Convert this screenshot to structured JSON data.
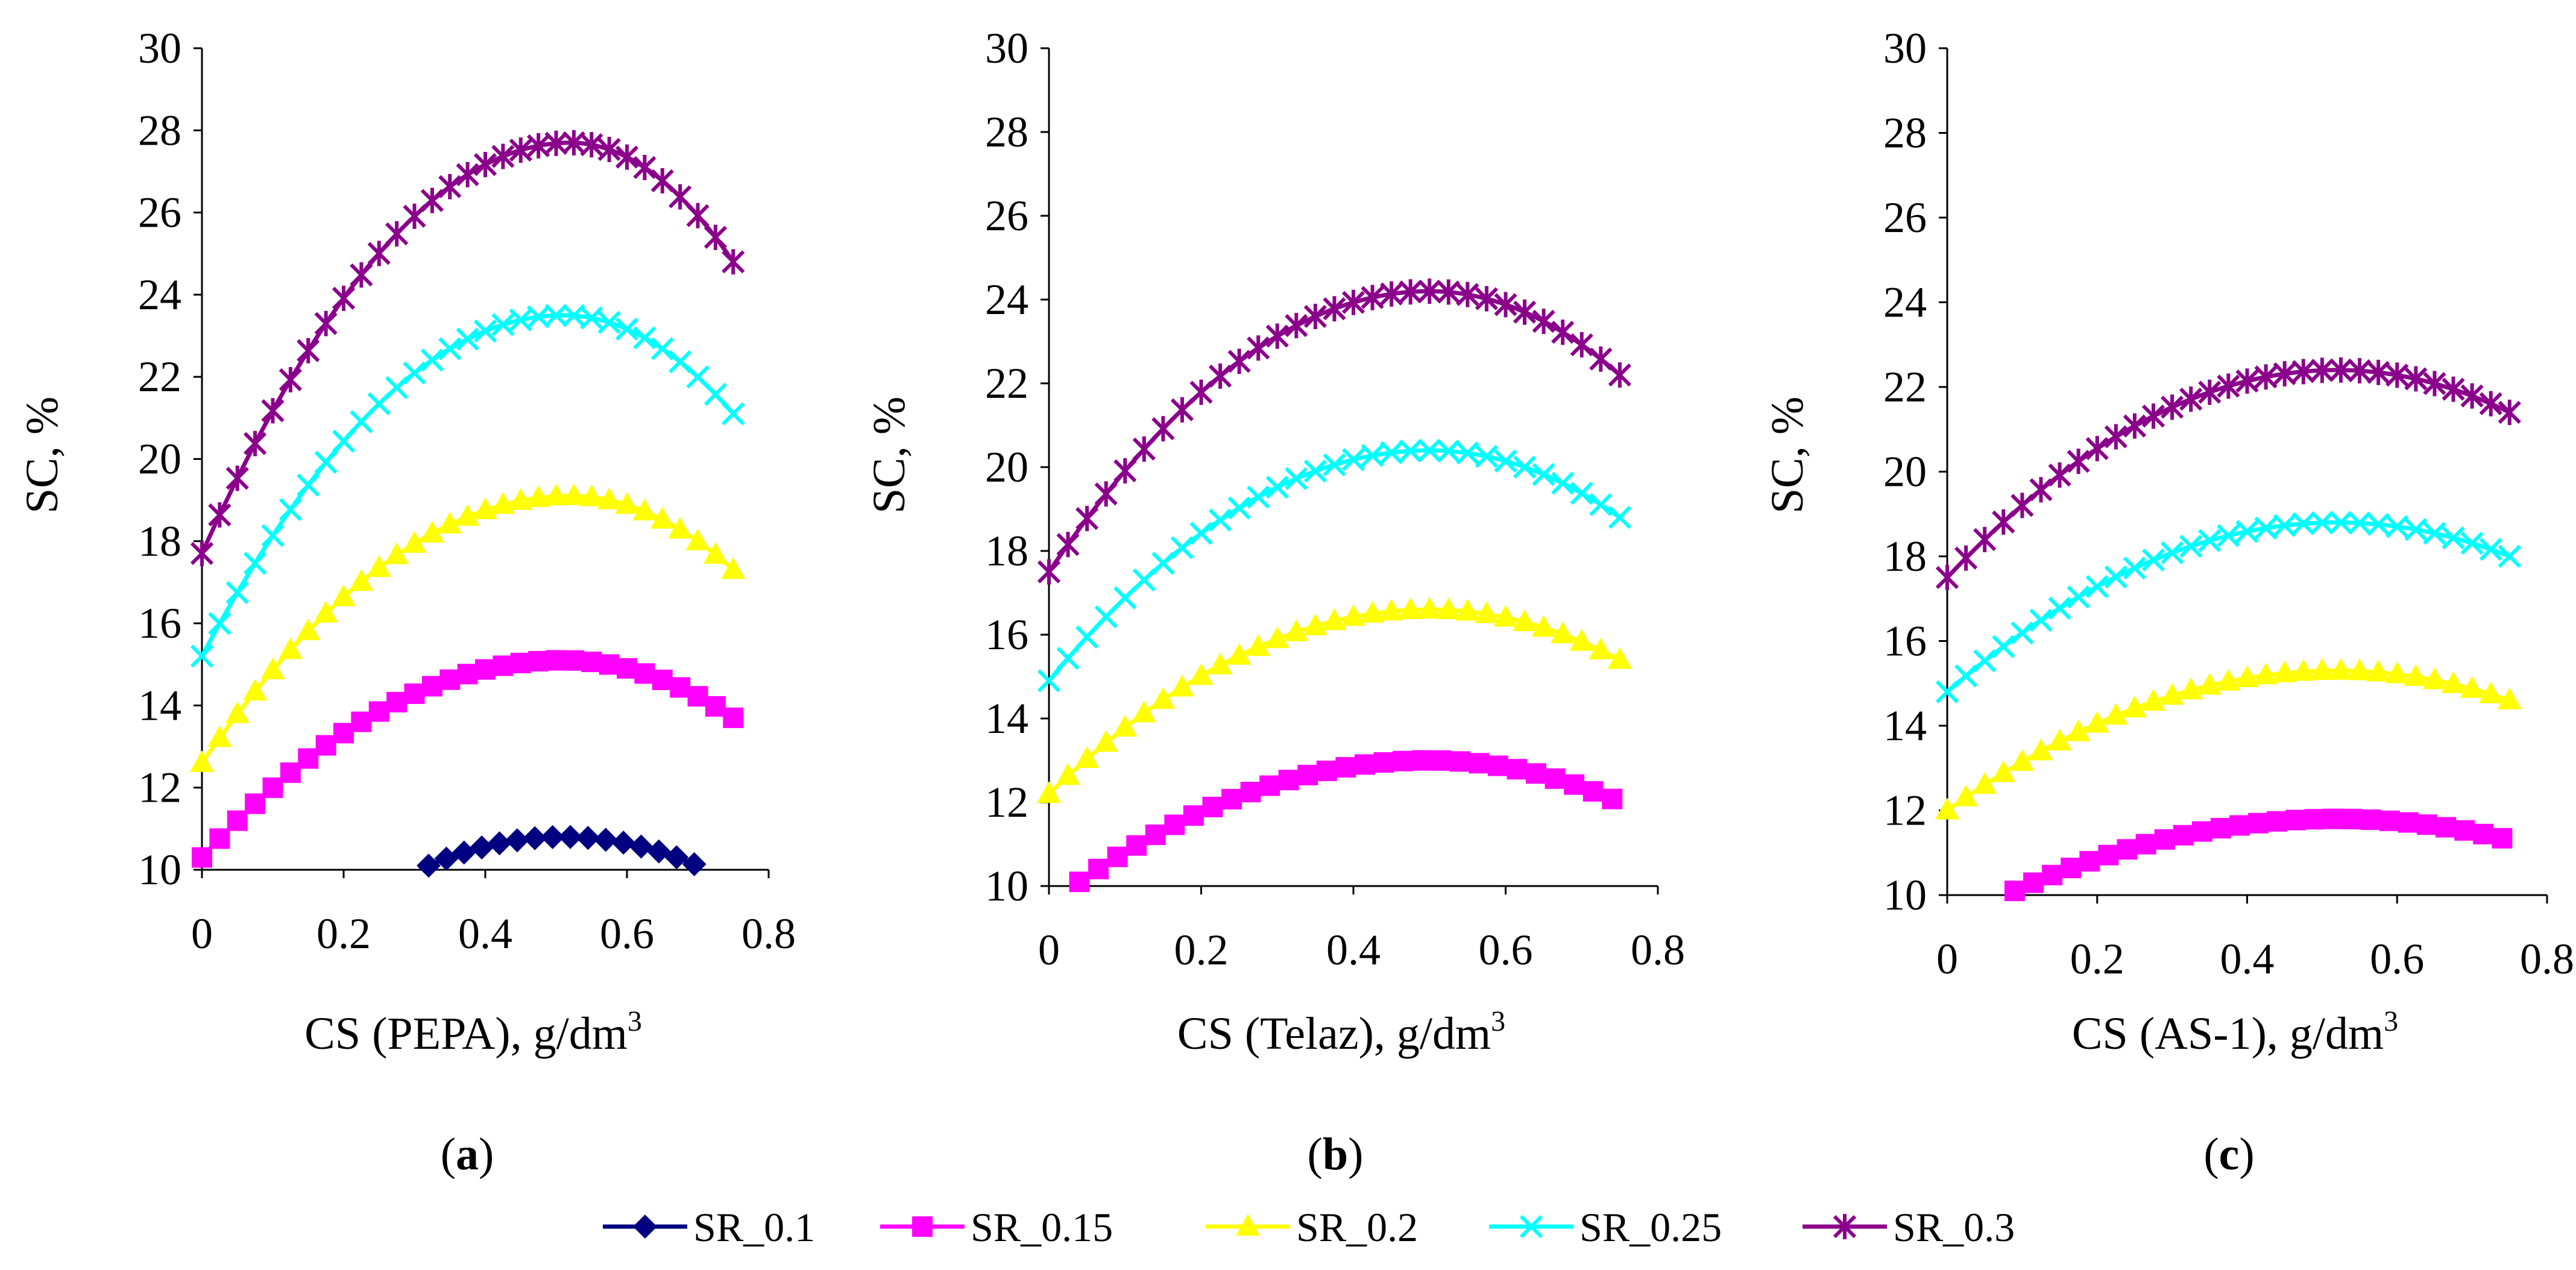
{
  "figure": {
    "legend": [
      {
        "name": "SR_0.1",
        "color": "#000080",
        "marker": "diamond"
      },
      {
        "name": "SR_0.15",
        "color": "#FF00FF",
        "marker": "square"
      },
      {
        "name": "SR_0.2",
        "color": "#FFFF00",
        "marker": "triangle"
      },
      {
        "name": "SR_0.25",
        "color": "#00FFFF",
        "marker": "x"
      },
      {
        "name": "SR_0.3",
        "color": "#8B008B",
        "marker": "star"
      }
    ]
  },
  "chart_data": [
    {
      "type": "line",
      "panel": "(a)",
      "panel_letter": "a",
      "title": "",
      "xlabel": "CS (PEPA), g/dm",
      "xlabel_sup": "3",
      "ylabel": "SC, %",
      "xlim": [
        0,
        0.8
      ],
      "ylim": [
        10,
        30
      ],
      "xticks": [
        "0",
        "0.2",
        "0.4",
        "0.6",
        "0.8"
      ],
      "yticks": [
        "10",
        "12",
        "14",
        "16",
        "18",
        "20",
        "22",
        "24",
        "26",
        "28",
        "30"
      ],
      "series": [
        {
          "name": "SR_0.1",
          "x_start": 0.32,
          "x_end": 0.7,
          "vertex_x": 0.51,
          "vertex_y": 10.8,
          "start_y": 10.1,
          "end_y": 10.1
        },
        {
          "name": "SR_0.15",
          "x_start": 0.0,
          "x_end": 0.75,
          "vertex_x": 0.51,
          "vertex_y": 15.1,
          "start_y": 10.3,
          "end_y": 13.7
        },
        {
          "name": "SR_0.2",
          "x_start": 0.0,
          "x_end": 0.75,
          "vertex_x": 0.52,
          "vertex_y": 19.1,
          "start_y": 12.6,
          "end_y": 17.3
        },
        {
          "name": "SR_0.25",
          "x_start": 0.0,
          "x_end": 0.75,
          "vertex_x": 0.51,
          "vertex_y": 23.5,
          "start_y": 15.2,
          "end_y": 21.1
        },
        {
          "name": "SR_0.3",
          "x_start": 0.0,
          "x_end": 0.75,
          "vertex_x": 0.52,
          "vertex_y": 27.7,
          "start_y": 17.7,
          "end_y": 24.8
        }
      ]
    },
    {
      "type": "line",
      "panel": "(b)",
      "panel_letter": "b",
      "title": "",
      "xlabel": "CS (Telaz), g/dm",
      "xlabel_sup": "3",
      "ylabel": "SC, %",
      "xlim": [
        0,
        0.8
      ],
      "ylim": [
        10,
        30
      ],
      "xticks": [
        "0",
        "0.2",
        "0.4",
        "0.6",
        "0.8"
      ],
      "yticks": [
        "10",
        "12",
        "14",
        "16",
        "18",
        "20",
        "22",
        "24",
        "26",
        "28",
        "30"
      ],
      "series": [
        {
          "name": "SR_0.15",
          "x_start": 0.04,
          "x_end": 0.75,
          "vertex_x": 0.5,
          "vertex_y": 13.0,
          "start_y": 10.1,
          "end_y": 12.0
        },
        {
          "name": "SR_0.2",
          "x_start": 0.0,
          "x_end": 0.75,
          "vertex_x": 0.5,
          "vertex_y": 16.6,
          "start_y": 12.2,
          "end_y": 15.4
        },
        {
          "name": "SR_0.25",
          "x_start": 0.0,
          "x_end": 0.75,
          "vertex_x": 0.5,
          "vertex_y": 20.4,
          "start_y": 14.9,
          "end_y": 18.8
        },
        {
          "name": "SR_0.3",
          "x_start": 0.0,
          "x_end": 0.75,
          "vertex_x": 0.5,
          "vertex_y": 24.2,
          "start_y": 17.5,
          "end_y": 22.2
        }
      ]
    },
    {
      "type": "line",
      "panel": "(c)",
      "panel_letter": "c",
      "title": "",
      "xlabel": "CS (AS-1), g/dm",
      "xlabel_sup": "3",
      "ylabel": "SC, %",
      "xlim": [
        0,
        0.8
      ],
      "ylim": [
        10,
        30
      ],
      "xticks": [
        "0",
        "0.2",
        "0.4",
        "0.6",
        "0.8"
      ],
      "yticks": [
        "10",
        "12",
        "14",
        "16",
        "18",
        "20",
        "22",
        "24",
        "26",
        "28",
        "30"
      ],
      "series": [
        {
          "name": "SR_0.15",
          "x_start": 0.09,
          "x_end": 0.75,
          "vertex_x": 0.52,
          "vertex_y": 11.8,
          "start_y": 10.1,
          "end_y": 11.3
        },
        {
          "name": "SR_0.2",
          "x_start": 0.0,
          "x_end": 0.75,
          "vertex_x": 0.52,
          "vertex_y": 15.3,
          "start_y": 12.0,
          "end_y": 14.6
        },
        {
          "name": "SR_0.25",
          "x_start": 0.0,
          "x_end": 0.75,
          "vertex_x": 0.52,
          "vertex_y": 18.8,
          "start_y": 14.8,
          "end_y": 18.0
        },
        {
          "name": "SR_0.3",
          "x_start": 0.0,
          "x_end": 0.75,
          "vertex_x": 0.52,
          "vertex_y": 22.4,
          "start_y": 17.5,
          "end_y": 21.4
        }
      ]
    }
  ]
}
